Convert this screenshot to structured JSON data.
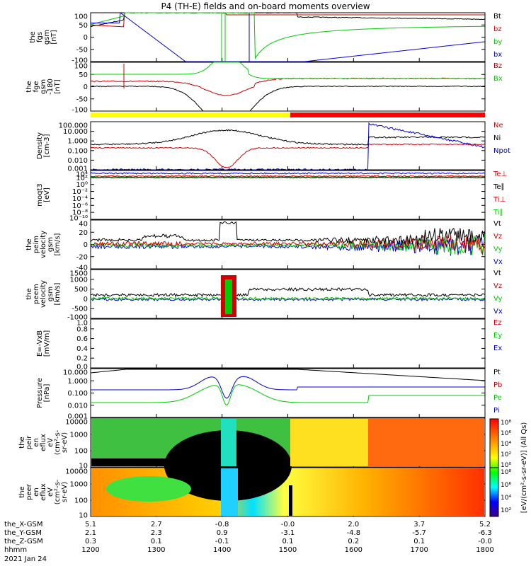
{
  "title": "P4 (TH-E) fields and on-board moments overview",
  "date_label": "2021 Jan 24",
  "colors": {
    "black": "#000000",
    "red": "#d00000",
    "green": "#00cc00",
    "blue": "#0000cc",
    "yellow": "#ffff00",
    "bar_red": "#ff0000"
  },
  "x_axis": {
    "hhmm": [
      "1200",
      "1300",
      "1400",
      "1500",
      "1600",
      "1700",
      "1800"
    ],
    "rows": [
      {
        "label": "the_X-GSM",
        "values": [
          "5.1",
          "2.7",
          "-0.8",
          "-0.0",
          "2.0",
          "3.7",
          "5.2"
        ]
      },
      {
        "label": "the_Y-GSM",
        "values": [
          "2.1",
          "2.3",
          "0.9",
          "-3.1",
          "-4.8",
          "-5.7",
          "-6.3"
        ]
      },
      {
        "label": "the_Z-GSM",
        "values": [
          "0.3",
          "0.1",
          "-0.1",
          "0.1",
          "0.2",
          "0.1",
          "-0.0"
        ]
      },
      {
        "label": "hhmm",
        "values": []
      }
    ]
  },
  "panels": [
    {
      "ylabel": [
        "the",
        "fgs",
        "gsm",
        "[nT]"
      ],
      "yticks": [
        "100",
        "50",
        "0",
        "-50",
        "-100"
      ],
      "legend": [
        {
          "t": "Bt",
          "c": "black"
        },
        {
          "t": "bz",
          "c": "red"
        },
        {
          "t": "by",
          "c": "green"
        },
        {
          "t": "bx",
          "c": "blue"
        }
      ]
    },
    {
      "ylabel": [
        "the",
        "fge",
        "gsm",
        "-180",
        "[nT]"
      ],
      "yticks": [
        "100",
        "50",
        "0",
        "-50",
        "-100"
      ],
      "legend": [
        {
          "t": "Bz",
          "c": "red"
        },
        {
          "t": "Bx",
          "c": "green"
        }
      ]
    },
    {
      "ylabel": [
        "Density",
        "[cm-3]"
      ],
      "yticks": [
        "100.000",
        "10.000",
        "1.000",
        "0.100",
        "0.010",
        "0.001"
      ],
      "legend": [
        {
          "t": "Ne",
          "c": "red"
        },
        {
          "t": "Ni",
          "c": "black"
        },
        {
          "t": "Npot",
          "c": "blue"
        }
      ]
    },
    {
      "ylabel": [
        "moqt3",
        "[eV]"
      ],
      "yticks": [
        "10⁴",
        "10²",
        "10⁰",
        "10⁻²",
        "10⁻⁴",
        "10⁻⁶",
        "10⁻⁸",
        "10⁻¹⁰"
      ],
      "legend": [
        {
          "t": "Te⊥",
          "c": "red"
        },
        {
          "t": "Te∥",
          "c": "black"
        },
        {
          "t": "Ti⊥",
          "c": "red"
        },
        {
          "t": "Ti∥",
          "c": "green"
        }
      ]
    },
    {
      "ylabel": [
        "the",
        "peim",
        "velocity",
        "gsm",
        "[km/s]"
      ],
      "yticks": [
        "40",
        "20",
        "0",
        "-20",
        "-40"
      ],
      "legend": [
        {
          "t": "Vt",
          "c": "black"
        },
        {
          "t": "Vz",
          "c": "red"
        },
        {
          "t": "Vy",
          "c": "green"
        },
        {
          "t": "Vx",
          "c": "blue"
        }
      ]
    },
    {
      "ylabel": [
        "the",
        "peem",
        "velocity",
        "gsm",
        "[km/s]"
      ],
      "yticks": [
        "1500",
        "1000",
        "500",
        "0",
        "-500",
        "-1000"
      ],
      "legend": [
        {
          "t": "Vt",
          "c": "black"
        },
        {
          "t": "Vz",
          "c": "red"
        },
        {
          "t": "Vy",
          "c": "green"
        },
        {
          "t": "Vx",
          "c": "blue"
        }
      ]
    },
    {
      "ylabel": [
        "E=-VxB",
        "[mV/m]"
      ],
      "yticks": [
        "1.0",
        "0.8",
        "0.6",
        "0.4",
        "0.2",
        "0.0"
      ],
      "legend": [
        {
          "t": "Ez",
          "c": "red"
        },
        {
          "t": "Ey",
          "c": "green"
        },
        {
          "t": "Ex",
          "c": "blue"
        }
      ]
    },
    {
      "ylabel": [
        "Pressure",
        "[nPa]"
      ],
      "yticks": [
        "10.000",
        "1.000",
        "0.100",
        "0.010",
        "0.001"
      ],
      "legend": [
        {
          "t": "Pt",
          "c": "black"
        },
        {
          "t": "Pb",
          "c": "red"
        },
        {
          "t": "Pe",
          "c": "green"
        },
        {
          "t": "Pi",
          "c": "blue"
        }
      ]
    },
    {
      "ylabel": [
        "the",
        "peir",
        "en",
        "eflux",
        "eV",
        "(cm²-s-",
        "sr-eV)"
      ],
      "yticks": [
        "10000",
        "1000",
        "100",
        "10"
      ],
      "legend": []
    },
    {
      "ylabel": [
        "the",
        "peer",
        "en",
        "eflux",
        "eV",
        "(cm²-s-",
        "sr-eV)"
      ],
      "yticks": [
        "10000",
        "1000",
        "100",
        "10"
      ],
      "legend": []
    }
  ],
  "colorbar": {
    "ticks_top": [
      "10⁸",
      "10⁶",
      "10⁴",
      "10²",
      "10⁰"
    ],
    "ticks_bottom": [
      "10⁸",
      "10⁶",
      "10⁴",
      "10²"
    ],
    "label": "[eV/(cm²-s-sr-eV)] (All Qs)"
  }
}
